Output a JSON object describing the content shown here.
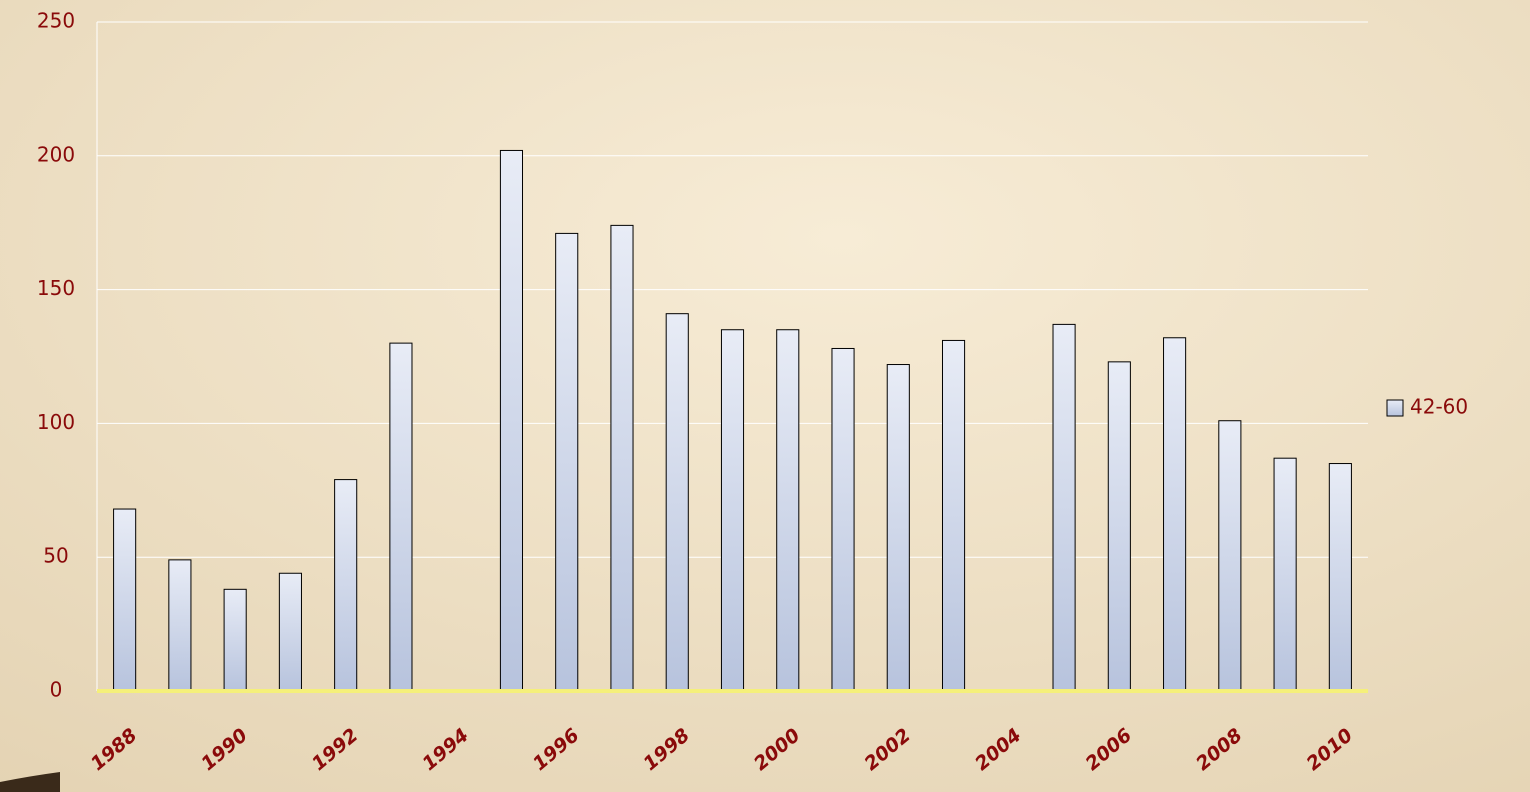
{
  "chart_data": {
    "type": "bar",
    "categories": [
      "1988",
      null,
      "1990",
      null,
      "1992",
      null,
      "1994",
      null,
      "1996",
      null,
      "1998",
      null,
      "2000",
      null,
      "2002",
      null,
      "2004",
      null,
      "2006",
      null,
      "2008",
      null,
      "2010"
    ],
    "series": [
      {
        "name": "42-60",
        "color": "#c9d4ec",
        "values": [
          68,
          49,
          38,
          44,
          79,
          130,
          null,
          202,
          171,
          174,
          141,
          135,
          135,
          128,
          122,
          131,
          null,
          137,
          123,
          132,
          101,
          87,
          85
        ]
      }
    ],
    "ylim": [
      0,
      250
    ],
    "yticks": [
      0,
      50,
      100,
      150,
      200,
      250
    ],
    "grid": true,
    "legend": "right"
  }
}
